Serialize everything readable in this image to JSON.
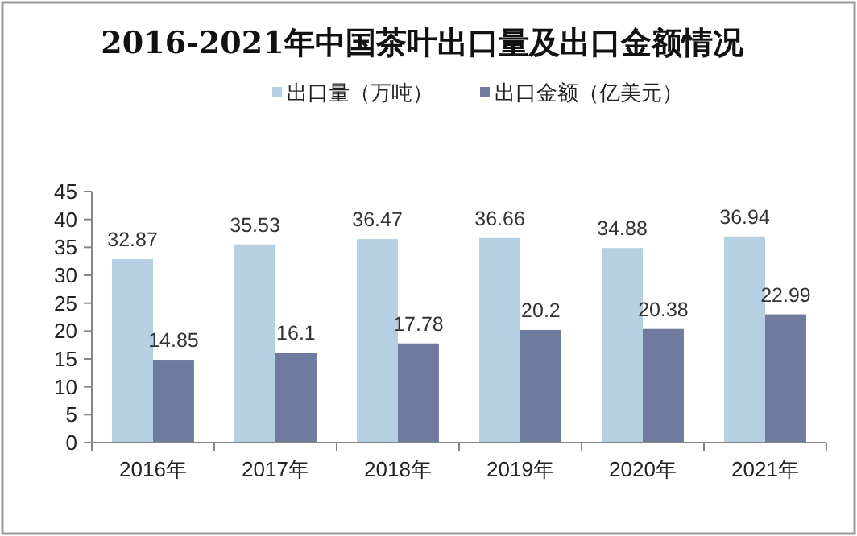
{
  "chart_data": {
    "type": "bar",
    "title": "2016-2021年中国茶叶出口量及出口金额情况",
    "categories": [
      "2016年",
      "2017年",
      "2018年",
      "2019年",
      "2020年",
      "2021年"
    ],
    "series": [
      {
        "name": "出口量（万吨）",
        "color": "#b4d0e2",
        "values": [
          32.87,
          35.53,
          36.47,
          36.66,
          34.88,
          36.94
        ]
      },
      {
        "name": "出口金额（亿美元）",
        "color": "#6e7a9e",
        "values": [
          14.85,
          16.1,
          17.78,
          20.2,
          20.38,
          22.99
        ]
      }
    ],
    "ylim": [
      0,
      45
    ],
    "yticks": [
      0,
      5,
      10,
      15,
      20,
      25,
      30,
      35,
      40,
      45
    ],
    "data_labels": true,
    "legend": "top"
  }
}
